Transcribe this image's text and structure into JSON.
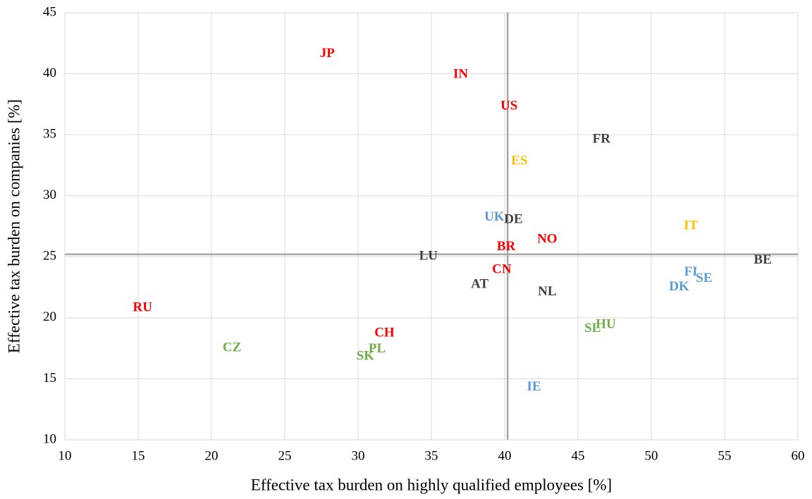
{
  "chart_data": {
    "type": "scatter",
    "x_label": "Effective tax burden on highly qualified employees [%]",
    "y_label": "Effective tax burden on companies [%]",
    "xlim": [
      10,
      60
    ],
    "xticks": [
      10,
      15,
      20,
      25,
      30,
      35,
      40,
      45,
      50,
      55,
      60
    ],
    "ylim": [
      10,
      45
    ],
    "yticks": [
      10,
      15,
      20,
      25,
      30,
      35,
      40,
      45
    ],
    "grid": true,
    "ref_x": 40.2,
    "ref_y": 25.2,
    "ref_color": "#a6a6a6",
    "points": [
      {
        "label": "JP",
        "x": 27.9,
        "y": 41.6,
        "color": "#ff0000"
      },
      {
        "label": "IN",
        "x": 37.0,
        "y": 39.9,
        "color": "#ff0000"
      },
      {
        "label": "US",
        "x": 40.3,
        "y": 37.3,
        "color": "#ff0000"
      },
      {
        "label": "FR",
        "x": 46.6,
        "y": 34.6,
        "color": "#404040"
      },
      {
        "label": "ES",
        "x": 41.0,
        "y": 32.8,
        "color": "#ffc000"
      },
      {
        "label": "UK",
        "x": 39.3,
        "y": 28.2,
        "color": "#5b9bd5"
      },
      {
        "label": "DE",
        "x": 40.6,
        "y": 28.0,
        "color": "#404040"
      },
      {
        "label": "IT",
        "x": 52.7,
        "y": 27.5,
        "color": "#ffc000"
      },
      {
        "label": "NO",
        "x": 42.9,
        "y": 26.4,
        "color": "#ff0000"
      },
      {
        "label": "BR",
        "x": 40.1,
        "y": 25.8,
        "color": "#ff0000"
      },
      {
        "label": "LU",
        "x": 34.8,
        "y": 25.0,
        "color": "#404040"
      },
      {
        "label": "BE",
        "x": 57.6,
        "y": 24.7,
        "color": "#404040"
      },
      {
        "label": "CN",
        "x": 39.8,
        "y": 23.9,
        "color": "#ff0000"
      },
      {
        "label": "FI",
        "x": 52.7,
        "y": 23.7,
        "color": "#5b9bd5"
      },
      {
        "label": "SE",
        "x": 53.6,
        "y": 23.2,
        "color": "#5b9bd5"
      },
      {
        "label": "AT",
        "x": 38.3,
        "y": 22.7,
        "color": "#404040"
      },
      {
        "label": "DK",
        "x": 51.9,
        "y": 22.5,
        "color": "#5b9bd5"
      },
      {
        "label": "NL",
        "x": 42.9,
        "y": 22.1,
        "color": "#404040"
      },
      {
        "label": "RU",
        "x": 15.3,
        "y": 20.8,
        "color": "#ff0000"
      },
      {
        "label": "HU",
        "x": 46.9,
        "y": 19.4,
        "color": "#70ad47"
      },
      {
        "label": "SL",
        "x": 46.0,
        "y": 19.1,
        "color": "#70ad47"
      },
      {
        "label": "CH",
        "x": 31.8,
        "y": 18.7,
        "color": "#ff0000"
      },
      {
        "label": "CZ",
        "x": 21.4,
        "y": 17.5,
        "color": "#70ad47"
      },
      {
        "label": "PL",
        "x": 31.3,
        "y": 17.4,
        "color": "#70ad47"
      },
      {
        "label": "SK",
        "x": 30.5,
        "y": 16.8,
        "color": "#70ad47"
      },
      {
        "label": "IE",
        "x": 42.0,
        "y": 14.3,
        "color": "#5b9bd5"
      }
    ]
  }
}
